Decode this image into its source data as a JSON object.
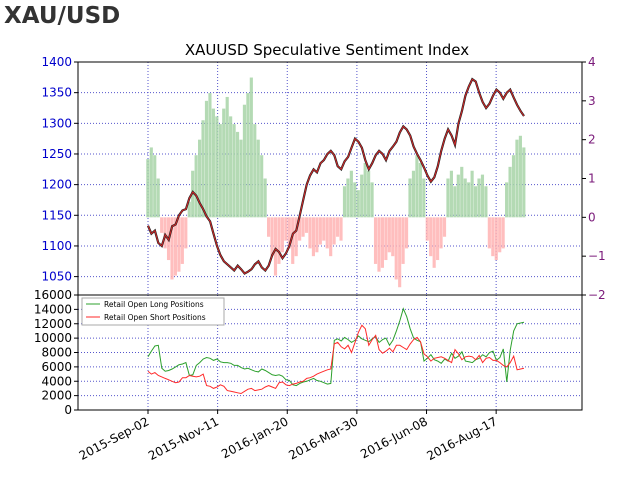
{
  "header": {
    "title": "XAU/USD"
  },
  "chart_data": [
    {
      "type": "line",
      "title": "XAUUSD Speculative Sentiment Index",
      "xlabel": "",
      "ylabel": "",
      "x_ticks": [
        "2015-Sep-02",
        "2015-Nov-11",
        "2016-Jan-20",
        "2016-Mar-30",
        "2016-Jun-08",
        "2016-Aug-17"
      ],
      "y_left_ticks": [
        "1050",
        "1100",
        "1150",
        "1200",
        "1250",
        "1300",
        "1350",
        "1400"
      ],
      "y_left_range": [
        1020,
        1400
      ],
      "y_right_ticks": [
        "−2",
        "−1",
        "0",
        "1",
        "2",
        "3",
        "4"
      ],
      "y_right_range": [
        -2,
        4
      ],
      "grid": true,
      "series": [
        {
          "kind": "candlestick-close",
          "color": "#d62728",
          "values": [
            1133,
            1120,
            1125,
            1105,
            1100,
            1118,
            1110,
            1132,
            1135,
            1150,
            1158,
            1160,
            1178,
            1188,
            1182,
            1170,
            1160,
            1148,
            1140,
            1120,
            1100,
            1085,
            1075,
            1070,
            1065,
            1060,
            1068,
            1062,
            1055,
            1058,
            1062,
            1070,
            1075,
            1065,
            1060,
            1068,
            1085,
            1095,
            1090,
            1080,
            1088,
            1100,
            1120,
            1125,
            1150,
            1175,
            1200,
            1215,
            1225,
            1220,
            1235,
            1240,
            1250,
            1255,
            1248,
            1230,
            1225,
            1238,
            1245,
            1260,
            1275,
            1270,
            1260,
            1240,
            1225,
            1235,
            1248,
            1255,
            1250,
            1240,
            1255,
            1262,
            1270,
            1285,
            1295,
            1290,
            1280,
            1262,
            1250,
            1240,
            1228,
            1215,
            1205,
            1212,
            1230,
            1255,
            1275,
            1290,
            1280,
            1265,
            1300,
            1320,
            1345,
            1360,
            1372,
            1368,
            1350,
            1335,
            1325,
            1332,
            1345,
            1355,
            1350,
            1340,
            1350,
            1355,
            1342,
            1330,
            1320,
            1312
          ]
        },
        {
          "kind": "ssi-bars",
          "positive_color": "#a7d3a7",
          "negative_color": "#ffb3b3",
          "values": [
            1.5,
            1.8,
            1.6,
            1.0,
            -0.4,
            -0.8,
            -1.1,
            -1.6,
            -1.5,
            -1.4,
            -1.2,
            -0.8,
            0.4,
            1.2,
            1.6,
            2.0,
            2.5,
            3.0,
            3.2,
            2.8,
            2.6,
            2.4,
            2.8,
            3.1,
            2.6,
            2.4,
            2.2,
            2.0,
            2.9,
            3.2,
            3.6,
            2.4,
            2.0,
            1.6,
            1.0,
            -0.5,
            -1.0,
            -1.5,
            -1.2,
            -0.9,
            -0.6,
            -0.8,
            -1.2,
            -1.0,
            -0.6,
            -0.5,
            -0.4,
            -0.8,
            -1.0,
            -0.9,
            -0.7,
            -0.6,
            -0.8,
            -1.0,
            -0.7,
            -0.5,
            -0.6,
            0.8,
            1.0,
            1.2,
            0.9,
            0.7,
            1.1,
            1.4,
            1.2,
            0.9,
            -1.2,
            -1.4,
            -1.3,
            -1.1,
            -0.9,
            -1.0,
            -1.6,
            -1.8,
            -1.2,
            -0.8,
            1.0,
            1.2,
            1.6,
            1.4,
            1.0,
            -0.6,
            -1.0,
            -1.3,
            -1.1,
            -0.8,
            -0.5,
            1.0,
            1.2,
            0.8,
            1.1,
            1.3,
            1.0,
            0.9,
            1.2,
            0.8,
            1.0,
            1.1,
            0.8,
            -0.8,
            -1.0,
            -1.1,
            -0.9,
            -0.8,
            0.9,
            1.3,
            1.6,
            2.0,
            2.1,
            1.8
          ]
        }
      ]
    },
    {
      "type": "line",
      "title": "",
      "xlabel": "",
      "ylabel": "",
      "y_ticks": [
        "0",
        "2000",
        "4000",
        "6000",
        "8000",
        "10000",
        "12000",
        "14000",
        "16000"
      ],
      "y_range": [
        0,
        16000
      ],
      "grid": true,
      "legend": "top-left",
      "series": [
        {
          "name": "Retail Open Long Positions",
          "color": "#2ca02c",
          "values": [
            7400,
            8200,
            8900,
            9000,
            5800,
            5400,
            5500,
            5700,
            6000,
            6300,
            6400,
            6600,
            4800,
            4900,
            6200,
            6600,
            7100,
            7300,
            7200,
            6900,
            7100,
            6700,
            6600,
            6600,
            6500,
            6200,
            6200,
            5900,
            5700,
            5800,
            5600,
            5400,
            5300,
            5700,
            5500,
            5200,
            4900,
            4800,
            4900,
            4700,
            4200,
            4100,
            3500,
            3400,
            3700,
            3900,
            4000,
            4200,
            4400,
            4100,
            4000,
            3800,
            3600,
            3700,
            9700,
            9900,
            9600,
            10100,
            9800,
            9400,
            9700,
            10300,
            9900,
            9700,
            9500,
            9900,
            10200,
            9400,
            9800,
            10000,
            9000,
            9700,
            11000,
            12400,
            14100,
            13000,
            11300,
            10000,
            9700,
            9500,
            6800,
            7200,
            7700,
            7000,
            6800,
            6500,
            7100,
            6800,
            7900,
            7200,
            7500,
            8100,
            6800,
            6700,
            6600,
            7000,
            7200,
            7700,
            7400,
            8000,
            8200,
            6900,
            7300,
            8500,
            3900,
            8300,
            11000,
            12000,
            12100,
            12200
          ]
        },
        {
          "name": "Retail Open Short Positions",
          "color": "#ff2a2a",
          "values": [
            5400,
            5000,
            5200,
            4800,
            4600,
            4400,
            4200,
            4000,
            3800,
            3900,
            4500,
            4500,
            4800,
            4700,
            4600,
            4700,
            5000,
            3400,
            3300,
            3000,
            3200,
            3500,
            3300,
            2700,
            2600,
            2500,
            2400,
            2300,
            2600,
            2900,
            3000,
            2700,
            2800,
            2900,
            3200,
            3400,
            3200,
            3000,
            3800,
            3900,
            3500,
            3400,
            3600,
            3700,
            3900,
            4000,
            4400,
            4500,
            4700,
            5000,
            5200,
            5400,
            5600,
            5700,
            9200,
            9400,
            8800,
            8500,
            9000,
            8000,
            9400,
            10800,
            11800,
            11300,
            9000,
            9800,
            10400,
            8400,
            7900,
            8200,
            8600,
            8100,
            9000,
            9000,
            8700,
            8400,
            9200,
            9800,
            10100,
            9500,
            7800,
            7400,
            6800,
            7200,
            7300,
            7400,
            7200,
            6900,
            6600,
            8400,
            7800,
            7000,
            7400,
            7500,
            7400,
            7000,
            7600,
            6600,
            7200,
            7300,
            6900,
            6900,
            6600,
            6200,
            6000,
            6600,
            7500,
            5600,
            5700,
            5800
          ]
        }
      ]
    }
  ]
}
